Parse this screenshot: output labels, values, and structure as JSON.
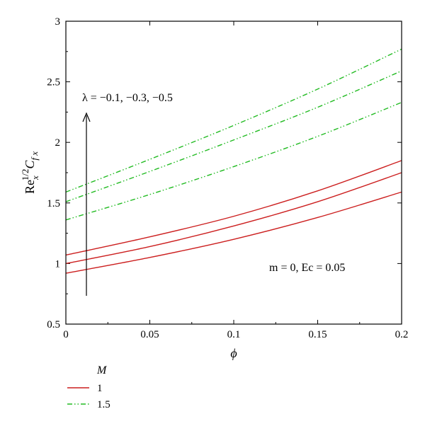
{
  "chart_data": {
    "type": "line",
    "xlabel": "ϕ",
    "ylabel": "Re_x^{1/2} C_{f x}",
    "xlim": [
      0,
      0.2
    ],
    "ylim": [
      0.5,
      3
    ],
    "xticks": [
      "0",
      "0.05",
      "0.1",
      "0.15",
      "0.2"
    ],
    "yticks": [
      "0.5",
      "1",
      "1.5",
      "2",
      "2.5",
      "3"
    ],
    "annotations": {
      "lambda": "λ = −0.1, −0.3, −0.5",
      "params": "m = 0, Ec = 0.05"
    },
    "legend": {
      "title": "M",
      "position": "bottom-left, below plot",
      "entries": [
        {
          "label": "1",
          "color": "#cc1f1f",
          "style": "solid"
        },
        {
          "label": "1.5",
          "color": "#22bb22",
          "style": "dash-dot-dot"
        }
      ]
    },
    "x": [
      0,
      0.05,
      0.1,
      0.15,
      0.2
    ],
    "series": [
      {
        "legend": "1",
        "lambda": "-0.1",
        "color": "#cc1f1f",
        "style": "solid",
        "values": [
          1.07,
          1.22,
          1.39,
          1.6,
          1.85
        ]
      },
      {
        "legend": "1",
        "lambda": "-0.3",
        "color": "#cc1f1f",
        "style": "solid",
        "values": [
          1.0,
          1.14,
          1.31,
          1.51,
          1.75
        ]
      },
      {
        "legend": "1",
        "lambda": "-0.5",
        "color": "#cc1f1f",
        "style": "solid",
        "values": [
          0.92,
          1.05,
          1.2,
          1.38,
          1.59
        ]
      },
      {
        "legend": "1.5",
        "lambda": "-0.1",
        "color": "#22bb22",
        "style": "dash-dot-dot",
        "values": [
          1.59,
          1.86,
          2.14,
          2.44,
          2.77
        ]
      },
      {
        "legend": "1.5",
        "lambda": "-0.3",
        "color": "#22bb22",
        "style": "dash-dot-dot",
        "values": [
          1.51,
          1.76,
          2.02,
          2.29,
          2.59
        ]
      },
      {
        "legend": "1.5",
        "lambda": "-0.5",
        "color": "#22bb22",
        "style": "dash-dot-dot",
        "values": [
          1.36,
          1.57,
          1.8,
          2.05,
          2.33
        ]
      }
    ]
  }
}
